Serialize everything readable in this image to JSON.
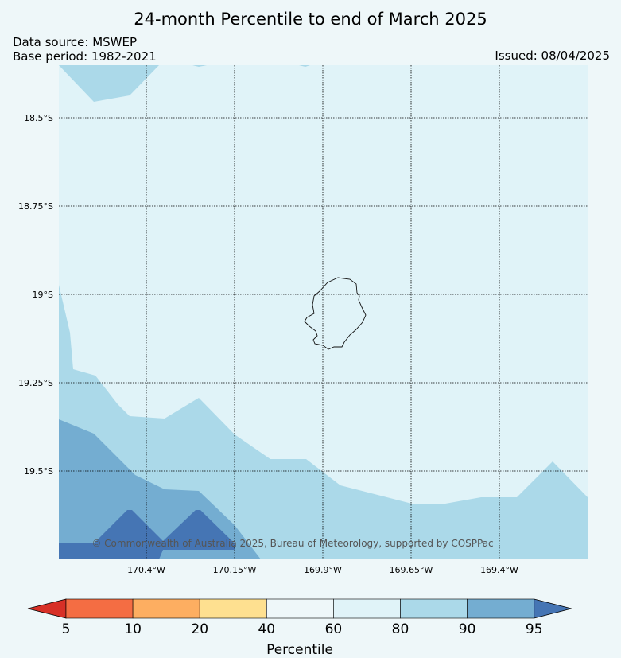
{
  "title": "24-month Percentile to end of March 2025",
  "data_source": "Data source: MSWEP",
  "base_period": "Base period: 1982-2021",
  "issued": "Issued: 08/04/2025",
  "credit": "© Commonwealth of Australia 2025, Bureau of Meteorology, supported by COSPPac",
  "map": {
    "lat_labels": [
      "18.5°S",
      "18.75°S",
      "19°S",
      "19.25°S",
      "19.5°S"
    ],
    "lon_labels": [
      "170.4°W",
      "170.15°W",
      "169.9°W",
      "169.65°W",
      "169.4°W"
    ],
    "region_shown": "Niue"
  },
  "colorbar": {
    "title": "Percentile",
    "ticks": [
      "5",
      "10",
      "20",
      "40",
      "60",
      "80",
      "90",
      "95"
    ],
    "colors": [
      "#d73027",
      "#f46d43",
      "#fdae61",
      "#fee090",
      "#eef7f9",
      "#e0f3f8",
      "#abd9e9",
      "#74add1",
      "#4575b4"
    ]
  },
  "colors": {
    "background": "#eef7f9",
    "class_80_90": "#e0f3f8",
    "class_90_95": "#abd9e9",
    "class_95_plus_light": "#74add1",
    "class_95_plus_dark": "#4575b4"
  }
}
